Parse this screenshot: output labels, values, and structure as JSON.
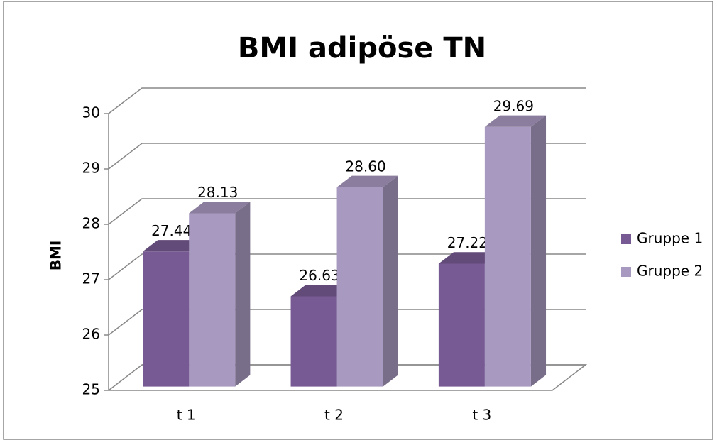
{
  "chart_data": {
    "type": "bar3d",
    "title": "BMI adipöse TN",
    "ylabel": "BMI",
    "categories": [
      "t 1",
      "t 2",
      "t 3"
    ],
    "series": [
      {
        "name": "Gruppe 1",
        "color": "#775a93",
        "values": [
          27.44,
          26.63,
          27.22
        ],
        "value_labels": [
          "27.44",
          "26.63",
          "27.22"
        ]
      },
      {
        "name": "Gruppe 2",
        "color": "#a899c0",
        "values": [
          28.13,
          28.6,
          29.69
        ],
        "value_labels": [
          "28.13",
          "28.60",
          "29.69"
        ]
      }
    ],
    "ylim": [
      25,
      30
    ],
    "yticks": [
      25,
      26,
      27,
      28,
      29,
      30
    ],
    "grid": true,
    "legend": "right"
  }
}
